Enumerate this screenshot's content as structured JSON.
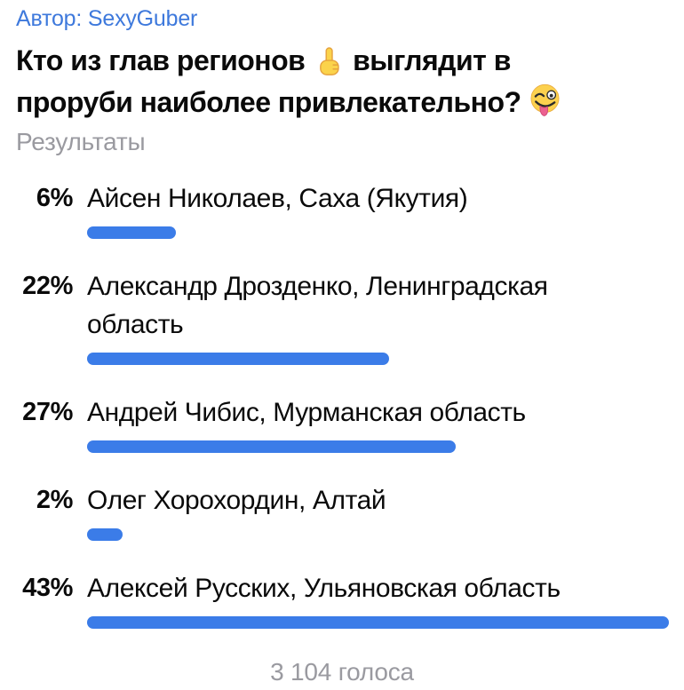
{
  "author": {
    "label": "Автор:",
    "name": "SexyGuber"
  },
  "question": {
    "line1_before_emoji": "Кто из глав регионов",
    "emoji1": "pointing-up",
    "line1_after_emoji": "выглядит в",
    "line2": "проруби наиболее привлекательно?",
    "emoji2": "winking-face-with-tongue",
    "full_text": "Кто из глав регионов ☝️ выглядит в проруби наиболее привлекательно? 😜"
  },
  "results_label": "Результаты",
  "options": [
    {
      "percent_label": "6%",
      "percent_value": 6,
      "text": "Айсен Николаев, Саха (Якутия)"
    },
    {
      "percent_label": "22%",
      "percent_value": 22,
      "text": "Александр Дрозденко, Ленинградская\nобласть"
    },
    {
      "percent_label": "27%",
      "percent_value": 27,
      "text": "Андрей Чибис, Мурманская область"
    },
    {
      "percent_label": "2%",
      "percent_value": 2,
      "text": "Олег Хорохордин, Алтай"
    },
    {
      "percent_label": "43%",
      "percent_value": 43,
      "text": "Алексей Русских, Ульяновская область"
    }
  ],
  "footer": {
    "votes_text": "3 104 голоса"
  },
  "colors": {
    "accent_blue": "#3E79DC",
    "bar_blue": "#3B7CE8",
    "secondary_gray": "#9A9AA0",
    "text_color": "#0A0A0A",
    "background": "#FFFFFF"
  },
  "chart_data": {
    "type": "bar",
    "orientation": "horizontal",
    "title": "Кто из глав регионов выглядит в проруби наиболее привлекательно?",
    "categories": [
      "Айсен Николаев, Саха (Якутия)",
      "Александр Дрозденко, Ленинградская область",
      "Андрей Чибис, Мурманская область",
      "Олег Хорохордин, Алтай",
      "Алексей Русских, Ульяновская область"
    ],
    "values": [
      6,
      22,
      27,
      2,
      43
    ],
    "unit": "%",
    "value_range": [
      0,
      43
    ],
    "total_votes_label": "3 104 голоса",
    "bar_color": "#3B7CE8",
    "legend": "none",
    "grid": false
  }
}
